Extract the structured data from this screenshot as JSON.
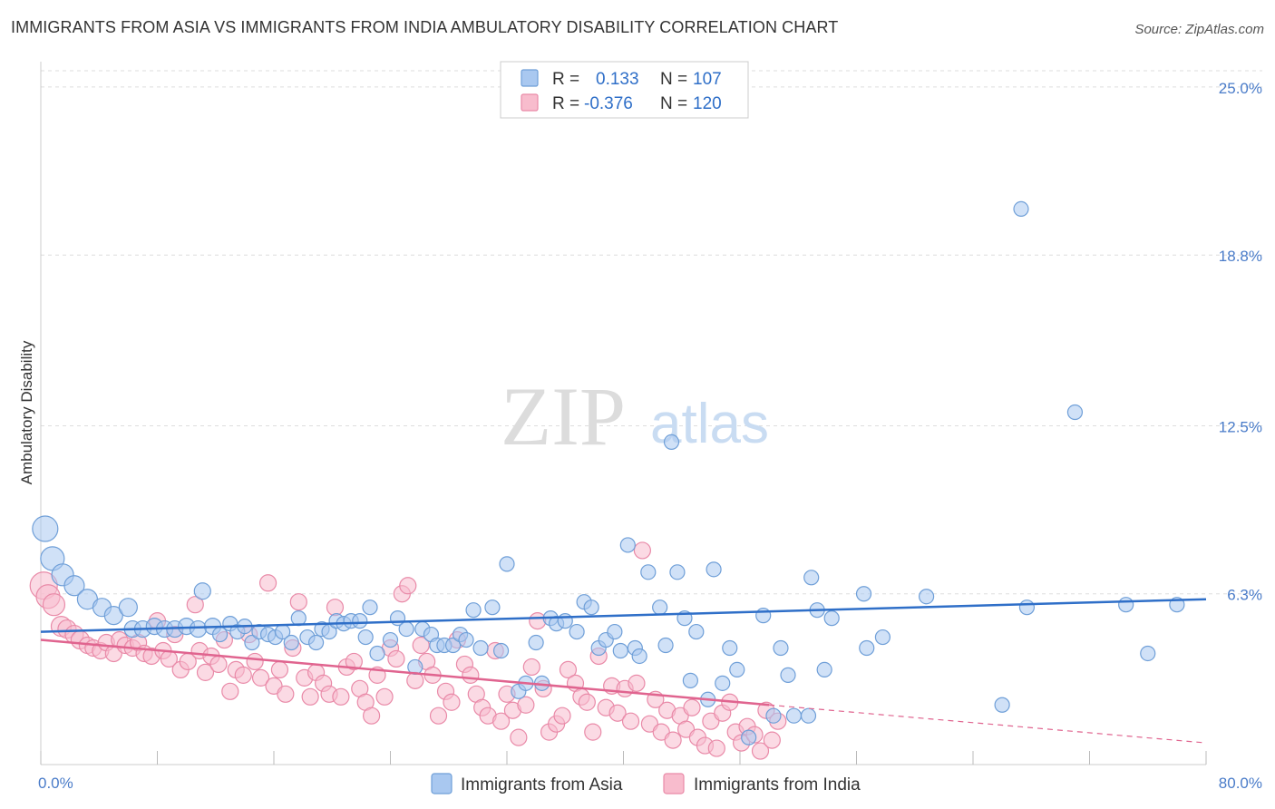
{
  "title": "IMMIGRANTS FROM ASIA VS IMMIGRANTS FROM INDIA AMBULATORY DISABILITY CORRELATION CHART",
  "source": "Source: ZipAtlas.com",
  "watermark": {
    "zip": "ZIP",
    "atlas": "atlas"
  },
  "colors": {
    "asia_fill": "#a9c8f0",
    "asia_stroke": "#6f9fd8",
    "asia_line": "#2f6fc8",
    "india_fill": "#f8bccd",
    "india_stroke": "#e98aa8",
    "india_line": "#e0648f",
    "tick_text": "#4a7cc9",
    "grid": "#dddddd"
  },
  "legend": {
    "rows": [
      {
        "r_label": "R =",
        "r_value": "0.133",
        "n_label": "N =",
        "n_value": "107"
      },
      {
        "r_label": "R =",
        "r_value": "-0.376",
        "n_label": "N =",
        "n_value": "120"
      }
    ]
  },
  "chart_data": {
    "type": "scatter",
    "title": "IMMIGRANTS FROM ASIA VS IMMIGRANTS FROM INDIA AMBULATORY DISABILITY CORRELATION CHART",
    "xlabel": "",
    "ylabel": "Ambulatory Disability",
    "xlim": [
      0,
      80
    ],
    "ylim": [
      0,
      25.6
    ],
    "x_tick_labels": [
      "0.0%",
      "80.0%"
    ],
    "y_ticks": [
      6.3,
      12.5,
      18.8,
      25.0
    ],
    "y_tick_labels": [
      "6.3%",
      "12.5%",
      "18.8%",
      "25.0%"
    ],
    "grid": "horizontal dashed",
    "legend_position": "top-center and bottom",
    "series": [
      {
        "name": "Immigrants from Asia",
        "trend": {
          "x": [
            0,
            80
          ],
          "y": [
            4.9,
            6.1
          ],
          "style": "solid"
        },
        "points": [
          [
            0.3,
            8.7,
            14
          ],
          [
            0.8,
            7.6,
            13
          ],
          [
            1.5,
            7.0,
            12
          ],
          [
            2.3,
            6.6,
            11
          ],
          [
            3.2,
            6.1,
            11
          ],
          [
            4.2,
            5.8,
            10
          ],
          [
            5.0,
            5.5,
            10
          ],
          [
            6.0,
            5.8,
            10
          ],
          [
            6.3,
            5.0,
            9
          ],
          [
            7.0,
            5.0,
            9
          ],
          [
            7.8,
            5.1,
            9
          ],
          [
            8.5,
            5.0,
            9
          ],
          [
            9.2,
            5.0,
            9
          ],
          [
            10.0,
            5.1,
            9
          ],
          [
            10.8,
            5.0,
            9
          ],
          [
            11.1,
            6.4,
            9
          ],
          [
            11.8,
            5.1,
            9
          ],
          [
            12.3,
            4.8,
            8
          ],
          [
            13.0,
            5.2,
            8
          ],
          [
            13.5,
            4.9,
            8
          ],
          [
            14.0,
            5.1,
            8
          ],
          [
            14.5,
            4.5,
            8
          ],
          [
            15.0,
            4.9,
            8
          ],
          [
            15.6,
            4.8,
            8
          ],
          [
            16.1,
            4.7,
            8
          ],
          [
            16.6,
            4.9,
            8
          ],
          [
            17.2,
            4.5,
            8
          ],
          [
            17.7,
            5.4,
            8
          ],
          [
            18.3,
            4.7,
            8
          ],
          [
            18.9,
            4.5,
            8
          ],
          [
            19.3,
            5.0,
            8
          ],
          [
            19.8,
            4.9,
            8
          ],
          [
            20.3,
            5.3,
            8
          ],
          [
            20.8,
            5.2,
            8
          ],
          [
            21.3,
            5.3,
            8
          ],
          [
            21.9,
            5.3,
            8
          ],
          [
            22.3,
            4.7,
            8
          ],
          [
            22.6,
            5.8,
            8
          ],
          [
            23.1,
            4.1,
            8
          ],
          [
            24.0,
            4.6,
            8
          ],
          [
            24.5,
            5.4,
            8
          ],
          [
            25.1,
            5.0,
            8
          ],
          [
            25.7,
            3.6,
            8
          ],
          [
            26.2,
            5.0,
            8
          ],
          [
            26.8,
            4.8,
            8
          ],
          [
            27.2,
            4.4,
            8
          ],
          [
            27.7,
            4.4,
            8
          ],
          [
            28.3,
            4.4,
            8
          ],
          [
            28.8,
            4.8,
            8
          ],
          [
            29.2,
            4.6,
            8
          ],
          [
            29.7,
            5.7,
            8
          ],
          [
            30.2,
            4.3,
            8
          ],
          [
            31.0,
            5.8,
            8
          ],
          [
            31.6,
            4.2,
            8
          ],
          [
            32.0,
            7.4,
            8
          ],
          [
            32.8,
            2.7,
            8
          ],
          [
            33.3,
            3.0,
            8
          ],
          [
            34.0,
            4.5,
            8
          ],
          [
            34.4,
            3.0,
            8
          ],
          [
            35.0,
            5.4,
            8
          ],
          [
            35.4,
            5.2,
            8
          ],
          [
            36.0,
            5.3,
            8
          ],
          [
            36.8,
            4.9,
            8
          ],
          [
            37.3,
            6.0,
            8
          ],
          [
            37.8,
            5.8,
            8
          ],
          [
            38.3,
            4.3,
            8
          ],
          [
            38.8,
            4.6,
            8
          ],
          [
            39.4,
            4.9,
            8
          ],
          [
            39.8,
            4.2,
            8
          ],
          [
            40.3,
            8.1,
            8
          ],
          [
            40.8,
            4.3,
            8
          ],
          [
            41.1,
            4.0,
            8
          ],
          [
            41.7,
            7.1,
            8
          ],
          [
            42.5,
            5.8,
            8
          ],
          [
            42.9,
            4.4,
            8
          ],
          [
            43.3,
            11.9,
            8
          ],
          [
            43.7,
            7.1,
            8
          ],
          [
            44.2,
            5.4,
            8
          ],
          [
            44.6,
            3.1,
            8
          ],
          [
            45.0,
            4.9,
            8
          ],
          [
            45.8,
            2.4,
            8
          ],
          [
            46.2,
            7.2,
            8
          ],
          [
            46.8,
            3.0,
            8
          ],
          [
            47.3,
            4.3,
            8
          ],
          [
            47.8,
            3.5,
            8
          ],
          [
            48.6,
            1.0,
            8
          ],
          [
            49.6,
            5.5,
            8
          ],
          [
            50.3,
            1.8,
            8
          ],
          [
            50.8,
            4.3,
            8
          ],
          [
            51.3,
            3.3,
            8
          ],
          [
            51.7,
            1.8,
            8
          ],
          [
            52.7,
            1.8,
            8
          ],
          [
            52.9,
            6.9,
            8
          ],
          [
            53.3,
            5.7,
            8
          ],
          [
            53.8,
            3.5,
            8
          ],
          [
            54.3,
            5.4,
            8
          ],
          [
            56.5,
            6.3,
            8
          ],
          [
            56.7,
            4.3,
            8
          ],
          [
            57.8,
            4.7,
            8
          ],
          [
            60.8,
            6.2,
            8
          ],
          [
            66.0,
            2.2,
            8
          ],
          [
            67.3,
            20.5,
            8
          ],
          [
            67.7,
            5.8,
            8
          ],
          [
            71.0,
            13.0,
            8
          ],
          [
            74.5,
            5.9,
            8
          ],
          [
            76.0,
            4.1,
            8
          ],
          [
            78.0,
            5.9,
            8
          ]
        ]
      },
      {
        "name": "Immigrants from India",
        "trend": {
          "x": [
            0,
            50
          ],
          "y": [
            4.6,
            2.2
          ],
          "style": "solid"
        },
        "trend_dashed": {
          "x": [
            50,
            80
          ],
          "y": [
            2.2,
            0.8
          ],
          "style": "dashed"
        },
        "points": [
          [
            0.2,
            6.6,
            15
          ],
          [
            0.5,
            6.2,
            13
          ],
          [
            0.9,
            5.9,
            12
          ],
          [
            1.4,
            5.1,
            11
          ],
          [
            1.8,
            5.0,
            10
          ],
          [
            2.3,
            4.8,
            10
          ],
          [
            2.7,
            4.6,
            10
          ],
          [
            3.2,
            4.4,
            9
          ],
          [
            3.6,
            4.3,
            9
          ],
          [
            4.1,
            4.2,
            9
          ],
          [
            4.5,
            4.5,
            9
          ],
          [
            5.0,
            4.1,
            9
          ],
          [
            5.4,
            4.6,
            9
          ],
          [
            5.8,
            4.4,
            9
          ],
          [
            6.3,
            4.3,
            9
          ],
          [
            6.7,
            4.5,
            9
          ],
          [
            7.1,
            4.1,
            9
          ],
          [
            7.6,
            4.0,
            9
          ],
          [
            8.0,
            5.3,
            9
          ],
          [
            8.4,
            4.2,
            9
          ],
          [
            8.8,
            3.9,
            9
          ],
          [
            9.2,
            4.8,
            9
          ],
          [
            9.6,
            3.5,
            9
          ],
          [
            10.1,
            3.8,
            9
          ],
          [
            10.6,
            5.9,
            9
          ],
          [
            10.9,
            4.2,
            9
          ],
          [
            11.3,
            3.4,
            9
          ],
          [
            11.7,
            4.0,
            9
          ],
          [
            12.2,
            3.7,
            9
          ],
          [
            12.6,
            4.6,
            9
          ],
          [
            13.0,
            2.7,
            9
          ],
          [
            13.4,
            3.5,
            9
          ],
          [
            13.9,
            3.3,
            9
          ],
          [
            14.3,
            4.8,
            9
          ],
          [
            14.7,
            3.8,
            9
          ],
          [
            15.1,
            3.2,
            9
          ],
          [
            15.6,
            6.7,
            9
          ],
          [
            16.0,
            2.9,
            9
          ],
          [
            16.4,
            3.5,
            9
          ],
          [
            16.8,
            2.6,
            9
          ],
          [
            17.3,
            4.3,
            9
          ],
          [
            17.7,
            6.0,
            9
          ],
          [
            18.1,
            3.2,
            9
          ],
          [
            18.5,
            2.5,
            9
          ],
          [
            18.9,
            3.4,
            9
          ],
          [
            19.4,
            3.0,
            9
          ],
          [
            19.8,
            2.6,
            9
          ],
          [
            20.2,
            5.8,
            9
          ],
          [
            20.6,
            2.5,
            9
          ],
          [
            21.0,
            3.6,
            9
          ],
          [
            21.5,
            3.8,
            9
          ],
          [
            21.9,
            2.8,
            9
          ],
          [
            22.3,
            2.3,
            9
          ],
          [
            22.7,
            1.8,
            9
          ],
          [
            23.1,
            3.3,
            9
          ],
          [
            23.6,
            2.5,
            9
          ],
          [
            24.0,
            4.3,
            9
          ],
          [
            24.4,
            3.9,
            9
          ],
          [
            24.8,
            6.3,
            9
          ],
          [
            25.2,
            6.6,
            9
          ],
          [
            25.7,
            3.1,
            9
          ],
          [
            26.1,
            4.4,
            9
          ],
          [
            26.5,
            3.8,
            9
          ],
          [
            26.9,
            3.3,
            9
          ],
          [
            27.3,
            1.8,
            9
          ],
          [
            27.8,
            2.7,
            9
          ],
          [
            28.2,
            2.3,
            9
          ],
          [
            28.6,
            4.6,
            9
          ],
          [
            29.1,
            3.7,
            9
          ],
          [
            29.5,
            3.3,
            9
          ],
          [
            29.9,
            2.6,
            9
          ],
          [
            30.3,
            2.1,
            9
          ],
          [
            30.7,
            1.8,
            9
          ],
          [
            31.2,
            4.2,
            9
          ],
          [
            31.6,
            1.6,
            9
          ],
          [
            32.0,
            2.6,
            9
          ],
          [
            32.4,
            2.0,
            9
          ],
          [
            32.8,
            1.0,
            9
          ],
          [
            33.3,
            2.2,
            9
          ],
          [
            33.7,
            3.6,
            9
          ],
          [
            34.1,
            5.3,
            9
          ],
          [
            34.5,
            2.8,
            9
          ],
          [
            34.9,
            1.2,
            9
          ],
          [
            35.4,
            1.5,
            9
          ],
          [
            35.8,
            1.8,
            9
          ],
          [
            36.2,
            3.5,
            9
          ],
          [
            36.7,
            3.0,
            9
          ],
          [
            37.1,
            2.5,
            9
          ],
          [
            37.5,
            2.3,
            9
          ],
          [
            37.9,
            1.2,
            9
          ],
          [
            38.3,
            4.0,
            9
          ],
          [
            38.8,
            2.1,
            9
          ],
          [
            39.2,
            2.9,
            9
          ],
          [
            39.6,
            1.9,
            9
          ],
          [
            40.1,
            2.8,
            9
          ],
          [
            40.5,
            1.6,
            9
          ],
          [
            40.9,
            3.0,
            9
          ],
          [
            41.3,
            7.9,
            9
          ],
          [
            41.8,
            1.5,
            9
          ],
          [
            42.2,
            2.4,
            9
          ],
          [
            42.6,
            1.2,
            9
          ],
          [
            43.0,
            2.0,
            9
          ],
          [
            43.4,
            0.9,
            9
          ],
          [
            43.9,
            1.8,
            9
          ],
          [
            44.3,
            1.3,
            9
          ],
          [
            44.7,
            2.1,
            9
          ],
          [
            45.1,
            1.0,
            9
          ],
          [
            45.6,
            0.7,
            9
          ],
          [
            46.0,
            1.6,
            9
          ],
          [
            46.4,
            0.6,
            9
          ],
          [
            46.8,
            1.9,
            9
          ],
          [
            47.3,
            2.3,
            9
          ],
          [
            47.7,
            1.2,
            9
          ],
          [
            48.1,
            0.8,
            9
          ],
          [
            48.5,
            1.4,
            9
          ],
          [
            49.0,
            1.1,
            9
          ],
          [
            49.4,
            0.5,
            9
          ],
          [
            49.8,
            2.0,
            9
          ],
          [
            50.2,
            0.9,
            9
          ],
          [
            50.6,
            1.6,
            9
          ]
        ]
      }
    ]
  },
  "bottom_legend": {
    "asia": "Immigrants from Asia",
    "india": "Immigrants from India"
  }
}
